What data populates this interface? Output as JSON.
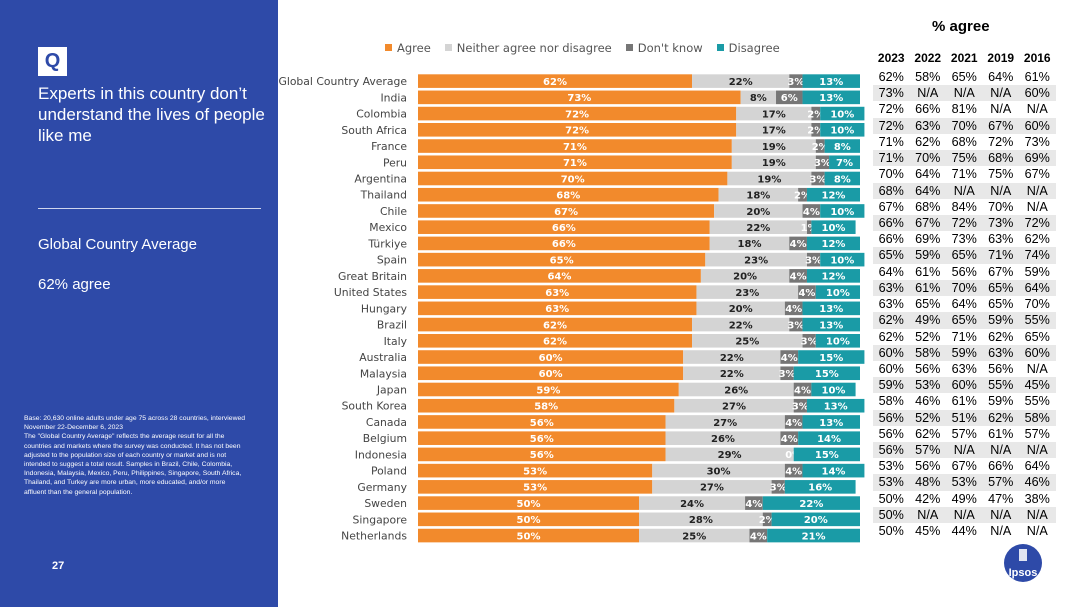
{
  "sidebar": {
    "badge": "Q",
    "question": "Experts in this country don’t understand the lives of people like me",
    "summary_label": "Global Country Average",
    "summary_value": "62% agree",
    "base_note": "Base: 20,630 online adults under age 75 across 28 countries, interviewed November 22-December 6, 2023\nThe \"Global Country Average\" reflects the average result for all the countries and markets where the survey was conducted. It has not been adjusted to the population size of each country or market and is not intended to suggest a total result. Samples in Brazil, Chile, Colombia, Indonesia, Malaysia, Mexico, Peru, Philippines, Singapore, South Africa, Thailand, and Turkey are more urban, more educated, and/or more affluent than the general population.",
    "page_number": "27"
  },
  "colors": {
    "sidebar_bg": "#2e4aa8",
    "agree": "#f28a2c",
    "neither": "#d4d4d4",
    "dont_know": "#767676",
    "disagree": "#1a9ba6"
  },
  "logo": {
    "text": "Ipsos",
    "icon": "ipsos-logo-icon"
  },
  "chart_data": {
    "type": "bar",
    "orientation": "horizontal",
    "stacked": true,
    "xlim": [
      0,
      100
    ],
    "categories": [
      "Global Country Average",
      "India",
      "Colombia",
      "South Africa",
      "France",
      "Peru",
      "Argentina",
      "Thailand",
      "Chile",
      "Mexico",
      "Türkiye",
      "Spain",
      "Great Britain",
      "United States",
      "Hungary",
      "Brazil",
      "Italy",
      "Australia",
      "Malaysia",
      "Japan",
      "South Korea",
      "Canada",
      "Belgium",
      "Indonesia",
      "Poland",
      "Germany",
      "Sweden",
      "Singapore",
      "Netherlands"
    ],
    "series": [
      {
        "name": "Agree",
        "values": [
          62,
          73,
          72,
          72,
          71,
          71,
          70,
          68,
          67,
          66,
          66,
          65,
          64,
          63,
          63,
          62,
          62,
          60,
          60,
          59,
          58,
          56,
          56,
          56,
          53,
          53,
          50,
          50,
          50
        ]
      },
      {
        "name": "Neither agree nor disagree",
        "values": [
          22,
          8,
          17,
          17,
          19,
          19,
          19,
          18,
          20,
          22,
          18,
          23,
          20,
          23,
          20,
          22,
          25,
          22,
          22,
          26,
          27,
          27,
          26,
          29,
          30,
          27,
          24,
          28,
          25
        ]
      },
      {
        "name": "Don't know",
        "values": [
          3,
          6,
          2,
          2,
          2,
          3,
          3,
          2,
          4,
          1,
          4,
          3,
          4,
          4,
          4,
          3,
          3,
          4,
          3,
          4,
          3,
          4,
          4,
          0,
          4,
          3,
          4,
          2,
          4
        ]
      },
      {
        "name": "Disagree",
        "values": [
          13,
          13,
          10,
          10,
          8,
          7,
          8,
          12,
          10,
          10,
          12,
          10,
          12,
          10,
          13,
          13,
          10,
          15,
          15,
          10,
          13,
          13,
          14,
          15,
          14,
          16,
          22,
          20,
          21
        ]
      }
    ],
    "legend_position": "top",
    "history_table": {
      "title": "% agree",
      "columns": [
        "2023",
        "2022",
        "2021",
        "2019",
        "2016"
      ],
      "rows": [
        [
          "62%",
          "58%",
          "65%",
          "64%",
          "61%"
        ],
        [
          "73%",
          "N/A",
          "N/A",
          "N/A",
          "60%"
        ],
        [
          "72%",
          "66%",
          "81%",
          "N/A",
          "N/A"
        ],
        [
          "72%",
          "63%",
          "70%",
          "67%",
          "60%"
        ],
        [
          "71%",
          "62%",
          "68%",
          "72%",
          "73%"
        ],
        [
          "71%",
          "70%",
          "75%",
          "68%",
          "69%"
        ],
        [
          "70%",
          "64%",
          "71%",
          "75%",
          "67%"
        ],
        [
          "68%",
          "64%",
          "N/A",
          "N/A",
          "N/A"
        ],
        [
          "67%",
          "68%",
          "84%",
          "70%",
          "N/A"
        ],
        [
          "66%",
          "67%",
          "72%",
          "73%",
          "72%"
        ],
        [
          "66%",
          "69%",
          "73%",
          "63%",
          "62%"
        ],
        [
          "65%",
          "59%",
          "65%",
          "71%",
          "74%"
        ],
        [
          "64%",
          "61%",
          "56%",
          "67%",
          "59%"
        ],
        [
          "63%",
          "61%",
          "70%",
          "65%",
          "64%"
        ],
        [
          "63%",
          "65%",
          "64%",
          "65%",
          "70%"
        ],
        [
          "62%",
          "49%",
          "65%",
          "59%",
          "55%"
        ],
        [
          "62%",
          "52%",
          "71%",
          "62%",
          "65%"
        ],
        [
          "60%",
          "58%",
          "59%",
          "63%",
          "60%"
        ],
        [
          "60%",
          "56%",
          "63%",
          "56%",
          "N/A"
        ],
        [
          "59%",
          "53%",
          "60%",
          "55%",
          "45%"
        ],
        [
          "58%",
          "46%",
          "61%",
          "59%",
          "55%"
        ],
        [
          "56%",
          "52%",
          "51%",
          "62%",
          "58%"
        ],
        [
          "56%",
          "62%",
          "57%",
          "61%",
          "57%"
        ],
        [
          "56%",
          "57%",
          "N/A",
          "N/A",
          "N/A"
        ],
        [
          "53%",
          "56%",
          "67%",
          "66%",
          "64%"
        ],
        [
          "53%",
          "48%",
          "53%",
          "57%",
          "46%"
        ],
        [
          "50%",
          "42%",
          "49%",
          "47%",
          "38%"
        ],
        [
          "50%",
          "N/A",
          "N/A",
          "N/A",
          "N/A"
        ],
        [
          "50%",
          "45%",
          "44%",
          "N/A",
          "N/A"
        ]
      ]
    }
  }
}
